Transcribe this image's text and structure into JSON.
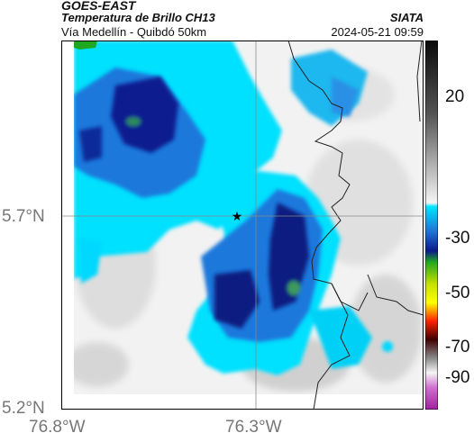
{
  "header": {
    "satellite": "GOES-EAST",
    "product": "Temperatura de Brillo CH13",
    "region": "Vía Medellín - Quibdó 50km",
    "source": "SIATA",
    "datetime": "2024-05-21 09:59"
  },
  "axes": {
    "y_ticks": [
      "5.7°N",
      "5.2°N"
    ],
    "x_ticks": [
      "76.8°W",
      "76.3°W"
    ]
  },
  "colorbar": {
    "ticks": [
      "20",
      "-30",
      "-50",
      "-70",
      "-90"
    ],
    "colors": {
      "warm_top": "#111111",
      "cyan": "#00e5ff",
      "blue": "#1f6fd6",
      "navy": "#0a1a8a",
      "green": "#1fa81f",
      "yellow": "#ffff00",
      "red": "#ff2200",
      "magenta": "#c02ec0"
    }
  },
  "map": {
    "marker_icon": "star-icon",
    "background": "#f0f0f0"
  }
}
